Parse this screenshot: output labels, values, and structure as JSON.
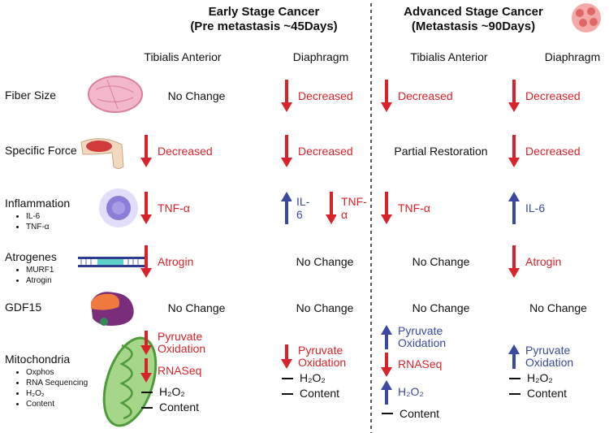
{
  "stages": [
    {
      "title": "Early Stage Cancer",
      "subtitle": "(Pre metastasis ~45Days)"
    },
    {
      "title": "Advanced Stage Cancer",
      "subtitle": "(Metastasis ~90Days)"
    }
  ],
  "columns": [
    "Tibialis Anterior",
    "Diaphragm",
    "Tibialis Anterior",
    "Diaphragm"
  ],
  "rows": [
    {
      "label": "Fiber Size",
      "items": [],
      "cells": [
        [
          {
            "dir": "none",
            "text": "No Change"
          }
        ],
        [
          {
            "dir": "down",
            "text": "Decreased"
          }
        ],
        [
          {
            "dir": "down",
            "text": "Decreased"
          }
        ],
        [
          {
            "dir": "down",
            "text": "Decreased"
          }
        ]
      ]
    },
    {
      "label": "Specific Force",
      "items": [],
      "cells": [
        [
          {
            "dir": "down",
            "text": "Decreased"
          }
        ],
        [
          {
            "dir": "down",
            "text": "Decreased"
          }
        ],
        [
          {
            "dir": "none",
            "text": "Partial Restoration"
          }
        ],
        [
          {
            "dir": "down",
            "text": "Decreased"
          }
        ]
      ]
    },
    {
      "label": "Inflammation",
      "items": [
        "IL-6",
        "TNF-α"
      ],
      "cells": [
        [
          {
            "dir": "down",
            "text": "TNF-α"
          }
        ],
        [
          {
            "dir": "up",
            "text": "IL-6"
          },
          {
            "dir": "down",
            "text": "TNF-α"
          }
        ],
        [
          {
            "dir": "down",
            "text": "TNF-α"
          }
        ],
        [
          {
            "dir": "up",
            "text": "IL-6"
          }
        ]
      ]
    },
    {
      "label": "Atrogenes",
      "items": [
        "MURF1",
        "Atrogin"
      ],
      "cells": [
        [
          {
            "dir": "down",
            "text": "Atrogin"
          }
        ],
        [
          {
            "dir": "none",
            "text": "No Change"
          }
        ],
        [
          {
            "dir": "none",
            "text": "No Change"
          }
        ],
        [
          {
            "dir": "down",
            "text": "Atrogin"
          }
        ]
      ]
    },
    {
      "label": "GDF15",
      "items": [],
      "cells": [
        [
          {
            "dir": "none",
            "text": "No Change"
          }
        ],
        [
          {
            "dir": "none",
            "text": "No Change"
          }
        ],
        [
          {
            "dir": "none",
            "text": "No Change"
          }
        ],
        [
          {
            "dir": "none",
            "text": "No Change"
          }
        ]
      ]
    },
    {
      "label": "Mitochondria",
      "items": [
        "Oxphos",
        "RNA Sequencing",
        "H₂O₂",
        "Content"
      ],
      "cells": [
        [
          {
            "dir": "down",
            "text": "Pyruvate Oxidation"
          },
          {
            "dir": "down",
            "text": "RNASeq"
          },
          {
            "dir": "dash",
            "text": "H₂O₂"
          },
          {
            "dir": "dash",
            "text": "Content"
          }
        ],
        [
          {
            "dir": "down",
            "text": "Pyruvate Oxidation"
          },
          {
            "dir": "dash",
            "text": "H₂O₂"
          },
          {
            "dir": "dash",
            "text": "Content"
          }
        ],
        [
          {
            "dir": "up",
            "text": "Pyruvate Oxidation"
          },
          {
            "dir": "down",
            "text": "RNASeq"
          },
          {
            "dir": "up",
            "text": "H₂O₂"
          },
          {
            "dir": "dash",
            "text": "Content"
          }
        ],
        [
          {
            "dir": "up",
            "text": "Pyruvate Oxidation"
          },
          {
            "dir": "dash",
            "text": "H₂O₂"
          },
          {
            "dir": "dash",
            "text": "Content"
          }
        ]
      ]
    }
  ]
}
